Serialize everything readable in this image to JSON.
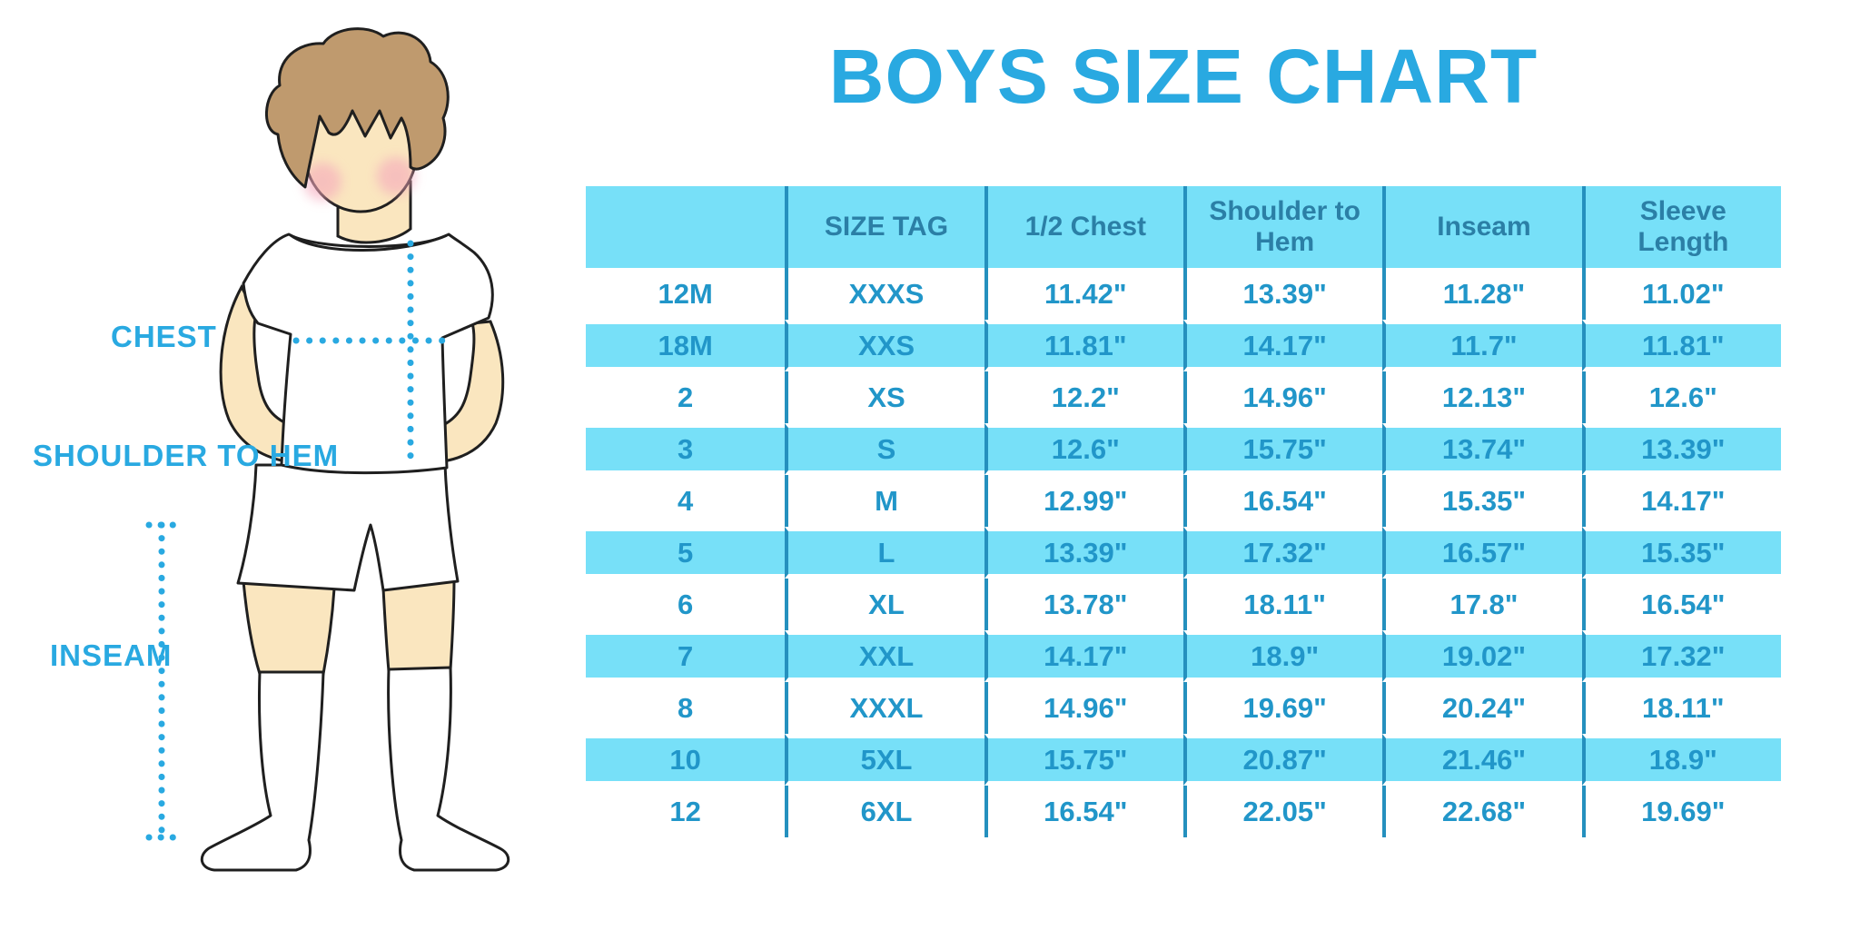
{
  "title": "BOYS SIZE CHART",
  "figure_labels": {
    "chest": "CHEST",
    "shoulder_to_hem": "SHOULDER TO HEM",
    "inseam": "INSEAM"
  },
  "colors": {
    "accent_blue": "#29A9E1",
    "band_cyan": "#77E0F8",
    "separator_blue": "#2590BE",
    "cell_text_blue": "#2196C9",
    "header_text_blue": "#2B7FA6",
    "skin": "#FAE6BF",
    "hair_brown": "#BF9A6E",
    "blush_pink": "#F5A8BC",
    "outline": "#1F1F1F"
  },
  "chart_data": {
    "type": "table",
    "title": "BOYS SIZE CHART",
    "columns": [
      "",
      "SIZE TAG",
      "1/2 Chest",
      "Shoulder to Hem",
      "Inseam",
      "Sleeve Length"
    ],
    "rows": [
      [
        "12M",
        "XXXS",
        "11.42\"",
        "13.39\"",
        "11.28\"",
        "11.02\""
      ],
      [
        "18M",
        "XXS",
        "11.81\"",
        "14.17\"",
        "11.7\"",
        "11.81\""
      ],
      [
        "2",
        "XS",
        "12.2\"",
        "14.96\"",
        "12.13\"",
        "12.6\""
      ],
      [
        "3",
        "S",
        "12.6\"",
        "15.75\"",
        "13.74\"",
        "13.39\""
      ],
      [
        "4",
        "M",
        "12.99\"",
        "16.54\"",
        "15.35\"",
        "14.17\""
      ],
      [
        "5",
        "L",
        "13.39\"",
        "17.32\"",
        "16.57\"",
        "15.35\""
      ],
      [
        "6",
        "XL",
        "13.78\"",
        "18.11\"",
        "17.8\"",
        "16.54\""
      ],
      [
        "7",
        "XXL",
        "14.17\"",
        "18.9\"",
        "19.02\"",
        "17.32\""
      ],
      [
        "8",
        "XXXL",
        "14.96\"",
        "19.69\"",
        "20.24\"",
        "18.11\""
      ],
      [
        "10",
        "5XL",
        "15.75\"",
        "20.87\"",
        "21.46\"",
        "18.9\""
      ],
      [
        "12",
        "6XL",
        "16.54\"",
        "22.05\"",
        "22.68\"",
        "19.69\""
      ]
    ]
  }
}
